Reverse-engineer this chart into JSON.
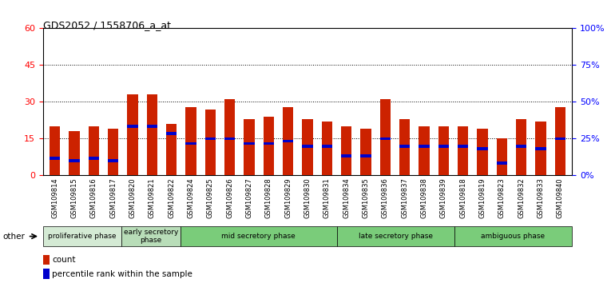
{
  "title": "GDS2052 / 1558706_a_at",
  "samples": [
    "GSM109814",
    "GSM109815",
    "GSM109816",
    "GSM109817",
    "GSM109820",
    "GSM109821",
    "GSM109822",
    "GSM109824",
    "GSM109825",
    "GSM109826",
    "GSM109827",
    "GSM109828",
    "GSM109829",
    "GSM109830",
    "GSM109831",
    "GSM109834",
    "GSM109835",
    "GSM109836",
    "GSM109837",
    "GSM109838",
    "GSM109839",
    "GSM109818",
    "GSM109819",
    "GSM109823",
    "GSM109832",
    "GSM109833",
    "GSM109840"
  ],
  "count_values": [
    20,
    18,
    20,
    19,
    33,
    33,
    21,
    28,
    27,
    31,
    23,
    24,
    28,
    23,
    22,
    20,
    19,
    31,
    23,
    20,
    20,
    20,
    19,
    15,
    23,
    22,
    28
  ],
  "percentile_values": [
    7,
    6,
    7,
    6,
    20,
    20,
    17,
    13,
    15,
    15,
    13,
    13,
    14,
    12,
    12,
    8,
    8,
    15,
    12,
    12,
    12,
    12,
    11,
    5,
    12,
    11,
    15
  ],
  "phase_configs": [
    {
      "label": "proliferative phase",
      "start": 0,
      "end": 4,
      "color": "#d4ead4"
    },
    {
      "label": "early secretory\nphase",
      "start": 4,
      "end": 7,
      "color": "#b8ddb8"
    },
    {
      "label": "mid secretory phase",
      "start": 7,
      "end": 15,
      "color": "#7acc7a"
    },
    {
      "label": "late secretory phase",
      "start": 15,
      "end": 21,
      "color": "#7acc7a"
    },
    {
      "label": "ambiguous phase",
      "start": 21,
      "end": 27,
      "color": "#7acc7a"
    }
  ],
  "bar_color": "#cc2200",
  "percentile_color": "#0000cc",
  "ylim_left": [
    0,
    60
  ],
  "ylim_right": [
    0,
    100
  ],
  "yticks_left": [
    0,
    15,
    30,
    45,
    60
  ],
  "yticks_right": [
    0,
    25,
    50,
    75,
    100
  ],
  "background_color": "#ffffff",
  "plot_bg_color": "#ffffff",
  "other_label": "other"
}
